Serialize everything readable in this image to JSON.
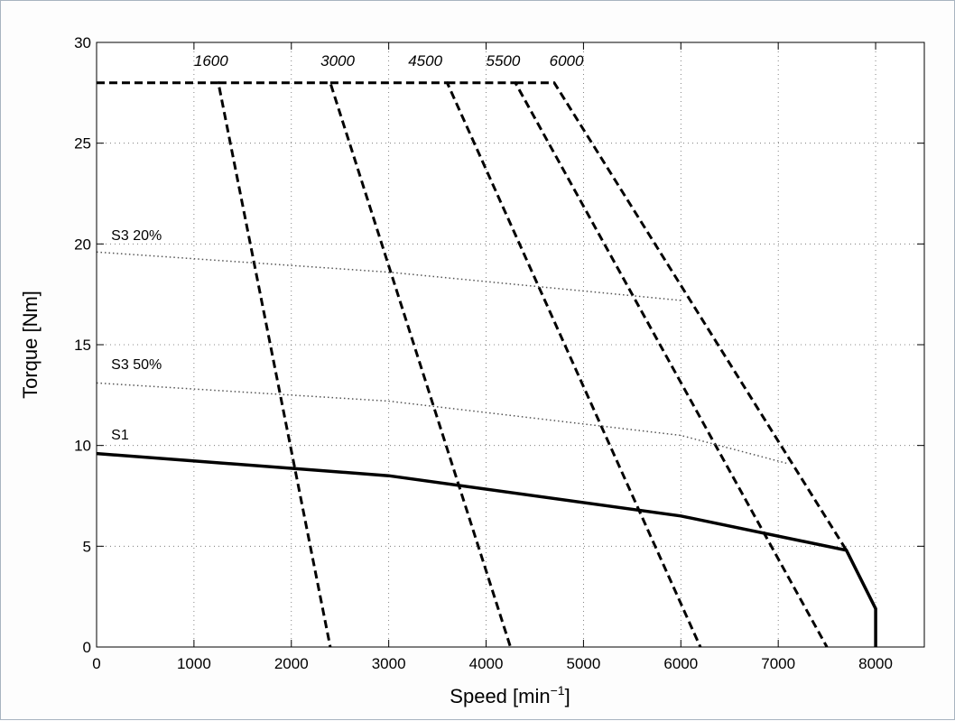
{
  "chart_data": {
    "type": "line",
    "title": "",
    "xlabel": "Speed [min",
    "xlabel_sup": "−1",
    "xlabel_close": "]",
    "ylabel": "Torque [Nm]",
    "xlim": [
      0,
      8500
    ],
    "ylim": [
      0,
      30
    ],
    "xticks": [
      0,
      1000,
      2000,
      3000,
      4000,
      5000,
      6000,
      7000,
      8000
    ],
    "yticks": [
      0,
      5,
      10,
      15,
      20,
      25,
      30
    ],
    "xtick_labels": [
      "0",
      "1000",
      "2000",
      "3000",
      "4000",
      "5000",
      "6000",
      "7000",
      "8000"
    ],
    "ytick_labels": [
      "0",
      "5",
      "10",
      "15",
      "20",
      "25",
      "30"
    ],
    "grid": true,
    "series": [
      {
        "name": "S1",
        "style": "solid",
        "points": [
          [
            0,
            9.6
          ],
          [
            3000,
            8.5
          ],
          [
            6000,
            6.5
          ],
          [
            7700,
            4.8
          ],
          [
            8000,
            1.9
          ],
          [
            8000,
            0
          ]
        ]
      },
      {
        "name": "S3 50%",
        "style": "dotted",
        "points": [
          [
            0,
            13.1
          ],
          [
            3000,
            12.2
          ],
          [
            6000,
            10.5
          ],
          [
            7100,
            9.1
          ]
        ]
      },
      {
        "name": "S3 20%",
        "style": "dotted",
        "points": [
          [
            0,
            19.6
          ],
          [
            3000,
            18.6
          ],
          [
            6000,
            17.2
          ]
        ]
      }
    ],
    "voltage_lines": [
      {
        "label": "1600",
        "style": "dashed",
        "points": [
          [
            0,
            28
          ],
          [
            1250,
            28
          ],
          [
            2400,
            0
          ]
        ]
      },
      {
        "label": "3000",
        "style": "dashed",
        "points": [
          [
            1250,
            28
          ],
          [
            2400,
            28
          ],
          [
            4250,
            0
          ]
        ]
      },
      {
        "label": "4500",
        "style": "dashed",
        "points": [
          [
            2400,
            28
          ],
          [
            3600,
            28
          ],
          [
            6200,
            0
          ]
        ]
      },
      {
        "label": "5500",
        "style": "dashed",
        "points": [
          [
            3600,
            28
          ],
          [
            4300,
            28
          ],
          [
            7500,
            0
          ]
        ]
      },
      {
        "label": "6000",
        "style": "dashed",
        "points": [
          [
            4300,
            28
          ],
          [
            4700,
            28
          ],
          [
            7700,
            4.8
          ]
        ]
      }
    ],
    "speed_label_positions": [
      [
        1000,
        29.1
      ],
      [
        2300,
        29.1
      ],
      [
        3200,
        29.1
      ],
      [
        4000,
        29.1
      ],
      [
        4650,
        29.1
      ]
    ],
    "curve_label_positions": [
      [
        150,
        10.3
      ],
      [
        150,
        13.8
      ],
      [
        150,
        20.2
      ]
    ]
  }
}
